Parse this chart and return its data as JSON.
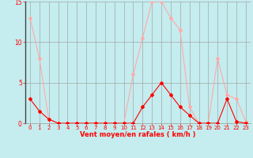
{
  "x": [
    0,
    1,
    2,
    3,
    4,
    5,
    6,
    7,
    8,
    9,
    10,
    11,
    12,
    13,
    14,
    15,
    16,
    17,
    18,
    19,
    20,
    21,
    22,
    23
  ],
  "y_mean": [
    3,
    1.5,
    0.5,
    0,
    0,
    0,
    0,
    0,
    0,
    0,
    0,
    0,
    2,
    3.5,
    5,
    3.5,
    2,
    1,
    0,
    0,
    0,
    3,
    0.2,
    0
  ],
  "y_gust": [
    13,
    8,
    0.5,
    0,
    0,
    0,
    0,
    0,
    0,
    0,
    0,
    6,
    10.5,
    15,
    15,
    13,
    11.5,
    2,
    0,
    0,
    8,
    3.5,
    3,
    0.2
  ],
  "color_mean": "#ff0000",
  "color_gust": "#ffaaaa",
  "bg_color": "#c5ecee",
  "grid_color": "#999999",
  "xlabel": "Vent moyen/en rafales ( km/h )",
  "ylim": [
    0,
    15
  ],
  "yticks": [
    0,
    5,
    10,
    15
  ],
  "xticks": [
    0,
    1,
    2,
    3,
    4,
    5,
    6,
    7,
    8,
    9,
    10,
    11,
    12,
    13,
    14,
    15,
    16,
    17,
    18,
    19,
    20,
    21,
    22,
    23
  ],
  "tick_color": "#ff0000",
  "label_color": "#ff0000",
  "marker": "D",
  "markersize": 2.0,
  "linewidth": 0.8
}
